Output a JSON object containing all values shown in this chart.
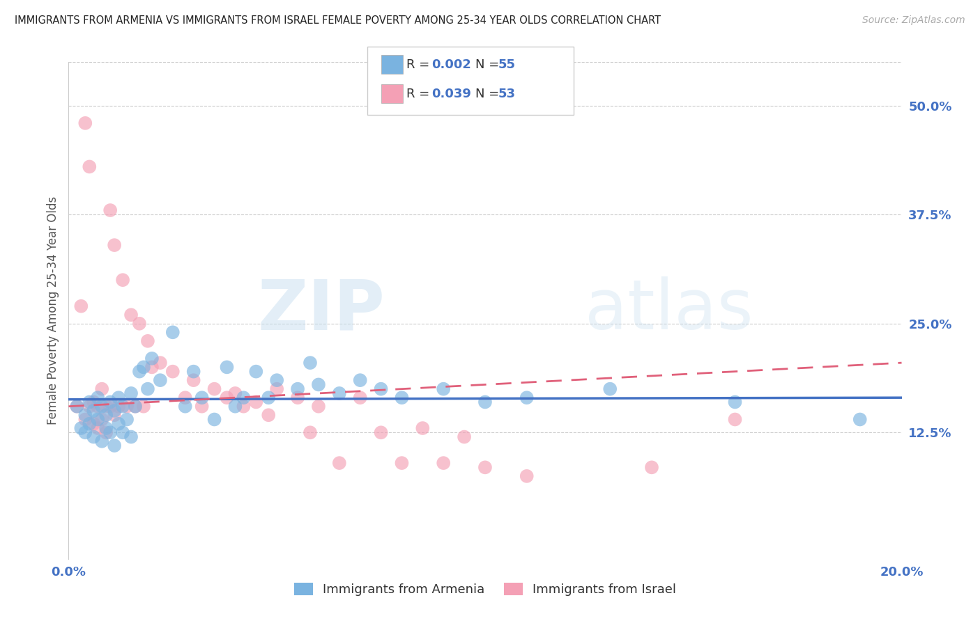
{
  "title": "IMMIGRANTS FROM ARMENIA VS IMMIGRANTS FROM ISRAEL FEMALE POVERTY AMONG 25-34 YEAR OLDS CORRELATION CHART",
  "source": "Source: ZipAtlas.com",
  "ylabel": "Female Poverty Among 25-34 Year Olds",
  "xlim": [
    0.0,
    0.2
  ],
  "ylim": [
    -0.02,
    0.55
  ],
  "yticks": [
    0.125,
    0.25,
    0.375,
    0.5
  ],
  "ytick_labels": [
    "12.5%",
    "25.0%",
    "37.5%",
    "50.0%"
  ],
  "color_armenia": "#7ab3e0",
  "color_israel": "#f4a0b5",
  "color_line_armenia": "#4472c4",
  "color_line_israel": "#e0607a",
  "watermark_zip": "ZIP",
  "watermark_atlas": "atlas",
  "armenia_x": [
    0.002,
    0.003,
    0.004,
    0.004,
    0.005,
    0.005,
    0.006,
    0.006,
    0.007,
    0.007,
    0.008,
    0.008,
    0.009,
    0.009,
    0.01,
    0.01,
    0.011,
    0.011,
    0.012,
    0.012,
    0.013,
    0.013,
    0.014,
    0.015,
    0.015,
    0.016,
    0.017,
    0.018,
    0.019,
    0.02,
    0.022,
    0.025,
    0.028,
    0.03,
    0.032,
    0.035,
    0.038,
    0.04,
    0.042,
    0.045,
    0.048,
    0.05,
    0.055,
    0.058,
    0.06,
    0.065,
    0.07,
    0.075,
    0.08,
    0.09,
    0.1,
    0.11,
    0.13,
    0.16,
    0.19
  ],
  "armenia_y": [
    0.155,
    0.13,
    0.145,
    0.125,
    0.16,
    0.135,
    0.15,
    0.12,
    0.165,
    0.14,
    0.155,
    0.115,
    0.145,
    0.13,
    0.16,
    0.125,
    0.15,
    0.11,
    0.165,
    0.135,
    0.155,
    0.125,
    0.14,
    0.17,
    0.12,
    0.155,
    0.195,
    0.2,
    0.175,
    0.21,
    0.185,
    0.24,
    0.155,
    0.195,
    0.165,
    0.14,
    0.2,
    0.155,
    0.165,
    0.195,
    0.165,
    0.185,
    0.175,
    0.205,
    0.18,
    0.17,
    0.185,
    0.175,
    0.165,
    0.175,
    0.16,
    0.165,
    0.175,
    0.16,
    0.14
  ],
  "israel_x": [
    0.002,
    0.003,
    0.004,
    0.004,
    0.005,
    0.005,
    0.006,
    0.006,
    0.007,
    0.007,
    0.008,
    0.008,
    0.009,
    0.009,
    0.01,
    0.01,
    0.011,
    0.011,
    0.012,
    0.013,
    0.014,
    0.015,
    0.016,
    0.017,
    0.018,
    0.019,
    0.02,
    0.022,
    0.025,
    0.028,
    0.03,
    0.032,
    0.035,
    0.038,
    0.04,
    0.042,
    0.045,
    0.048,
    0.05,
    0.055,
    0.058,
    0.06,
    0.065,
    0.07,
    0.075,
    0.08,
    0.085,
    0.09,
    0.095,
    0.1,
    0.11,
    0.14,
    0.16
  ],
  "israel_y": [
    0.155,
    0.27,
    0.14,
    0.48,
    0.155,
    0.43,
    0.16,
    0.135,
    0.155,
    0.13,
    0.175,
    0.14,
    0.155,
    0.125,
    0.38,
    0.155,
    0.34,
    0.145,
    0.155,
    0.3,
    0.155,
    0.26,
    0.155,
    0.25,
    0.155,
    0.23,
    0.2,
    0.205,
    0.195,
    0.165,
    0.185,
    0.155,
    0.175,
    0.165,
    0.17,
    0.155,
    0.16,
    0.145,
    0.175,
    0.165,
    0.125,
    0.155,
    0.09,
    0.165,
    0.125,
    0.09,
    0.13,
    0.09,
    0.12,
    0.085,
    0.075,
    0.085,
    0.14
  ],
  "arm_trend_x": [
    0.0,
    0.2
  ],
  "arm_trend_y": [
    0.163,
    0.165
  ],
  "isr_trend_x": [
    0.0,
    0.2
  ],
  "isr_trend_y": [
    0.155,
    0.205
  ]
}
